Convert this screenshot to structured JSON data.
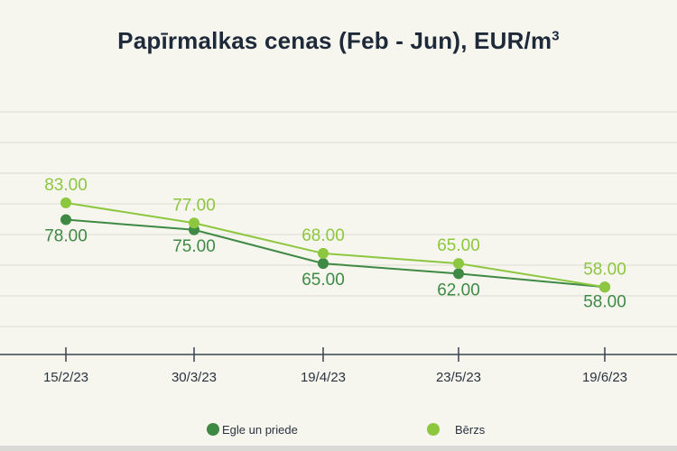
{
  "chart_data": {
    "type": "line",
    "title": "Papīrmalkas cenas (Feb - Jun), EUR/m",
    "title_sup": "3",
    "categories": [
      "15/2/23",
      "30/3/23",
      "19/4/23",
      "23/5/23",
      "19/6/23"
    ],
    "series": [
      {
        "name": "Egle un priede",
        "color": "#3e8a45",
        "values": [
          78,
          75,
          65,
          62,
          58
        ],
        "labels": [
          "78.00",
          "75.00",
          "65.00",
          "62.00",
          "58.00"
        ]
      },
      {
        "name": "Bērzs",
        "color": "#8dc63f",
        "values": [
          83,
          77,
          68,
          65,
          58
        ],
        "labels": [
          "83.00",
          "77.00",
          "68.00",
          "65.00",
          "58.00"
        ]
      }
    ],
    "ylim": [
      38,
      110
    ],
    "grid": true,
    "legend": "bottom"
  }
}
